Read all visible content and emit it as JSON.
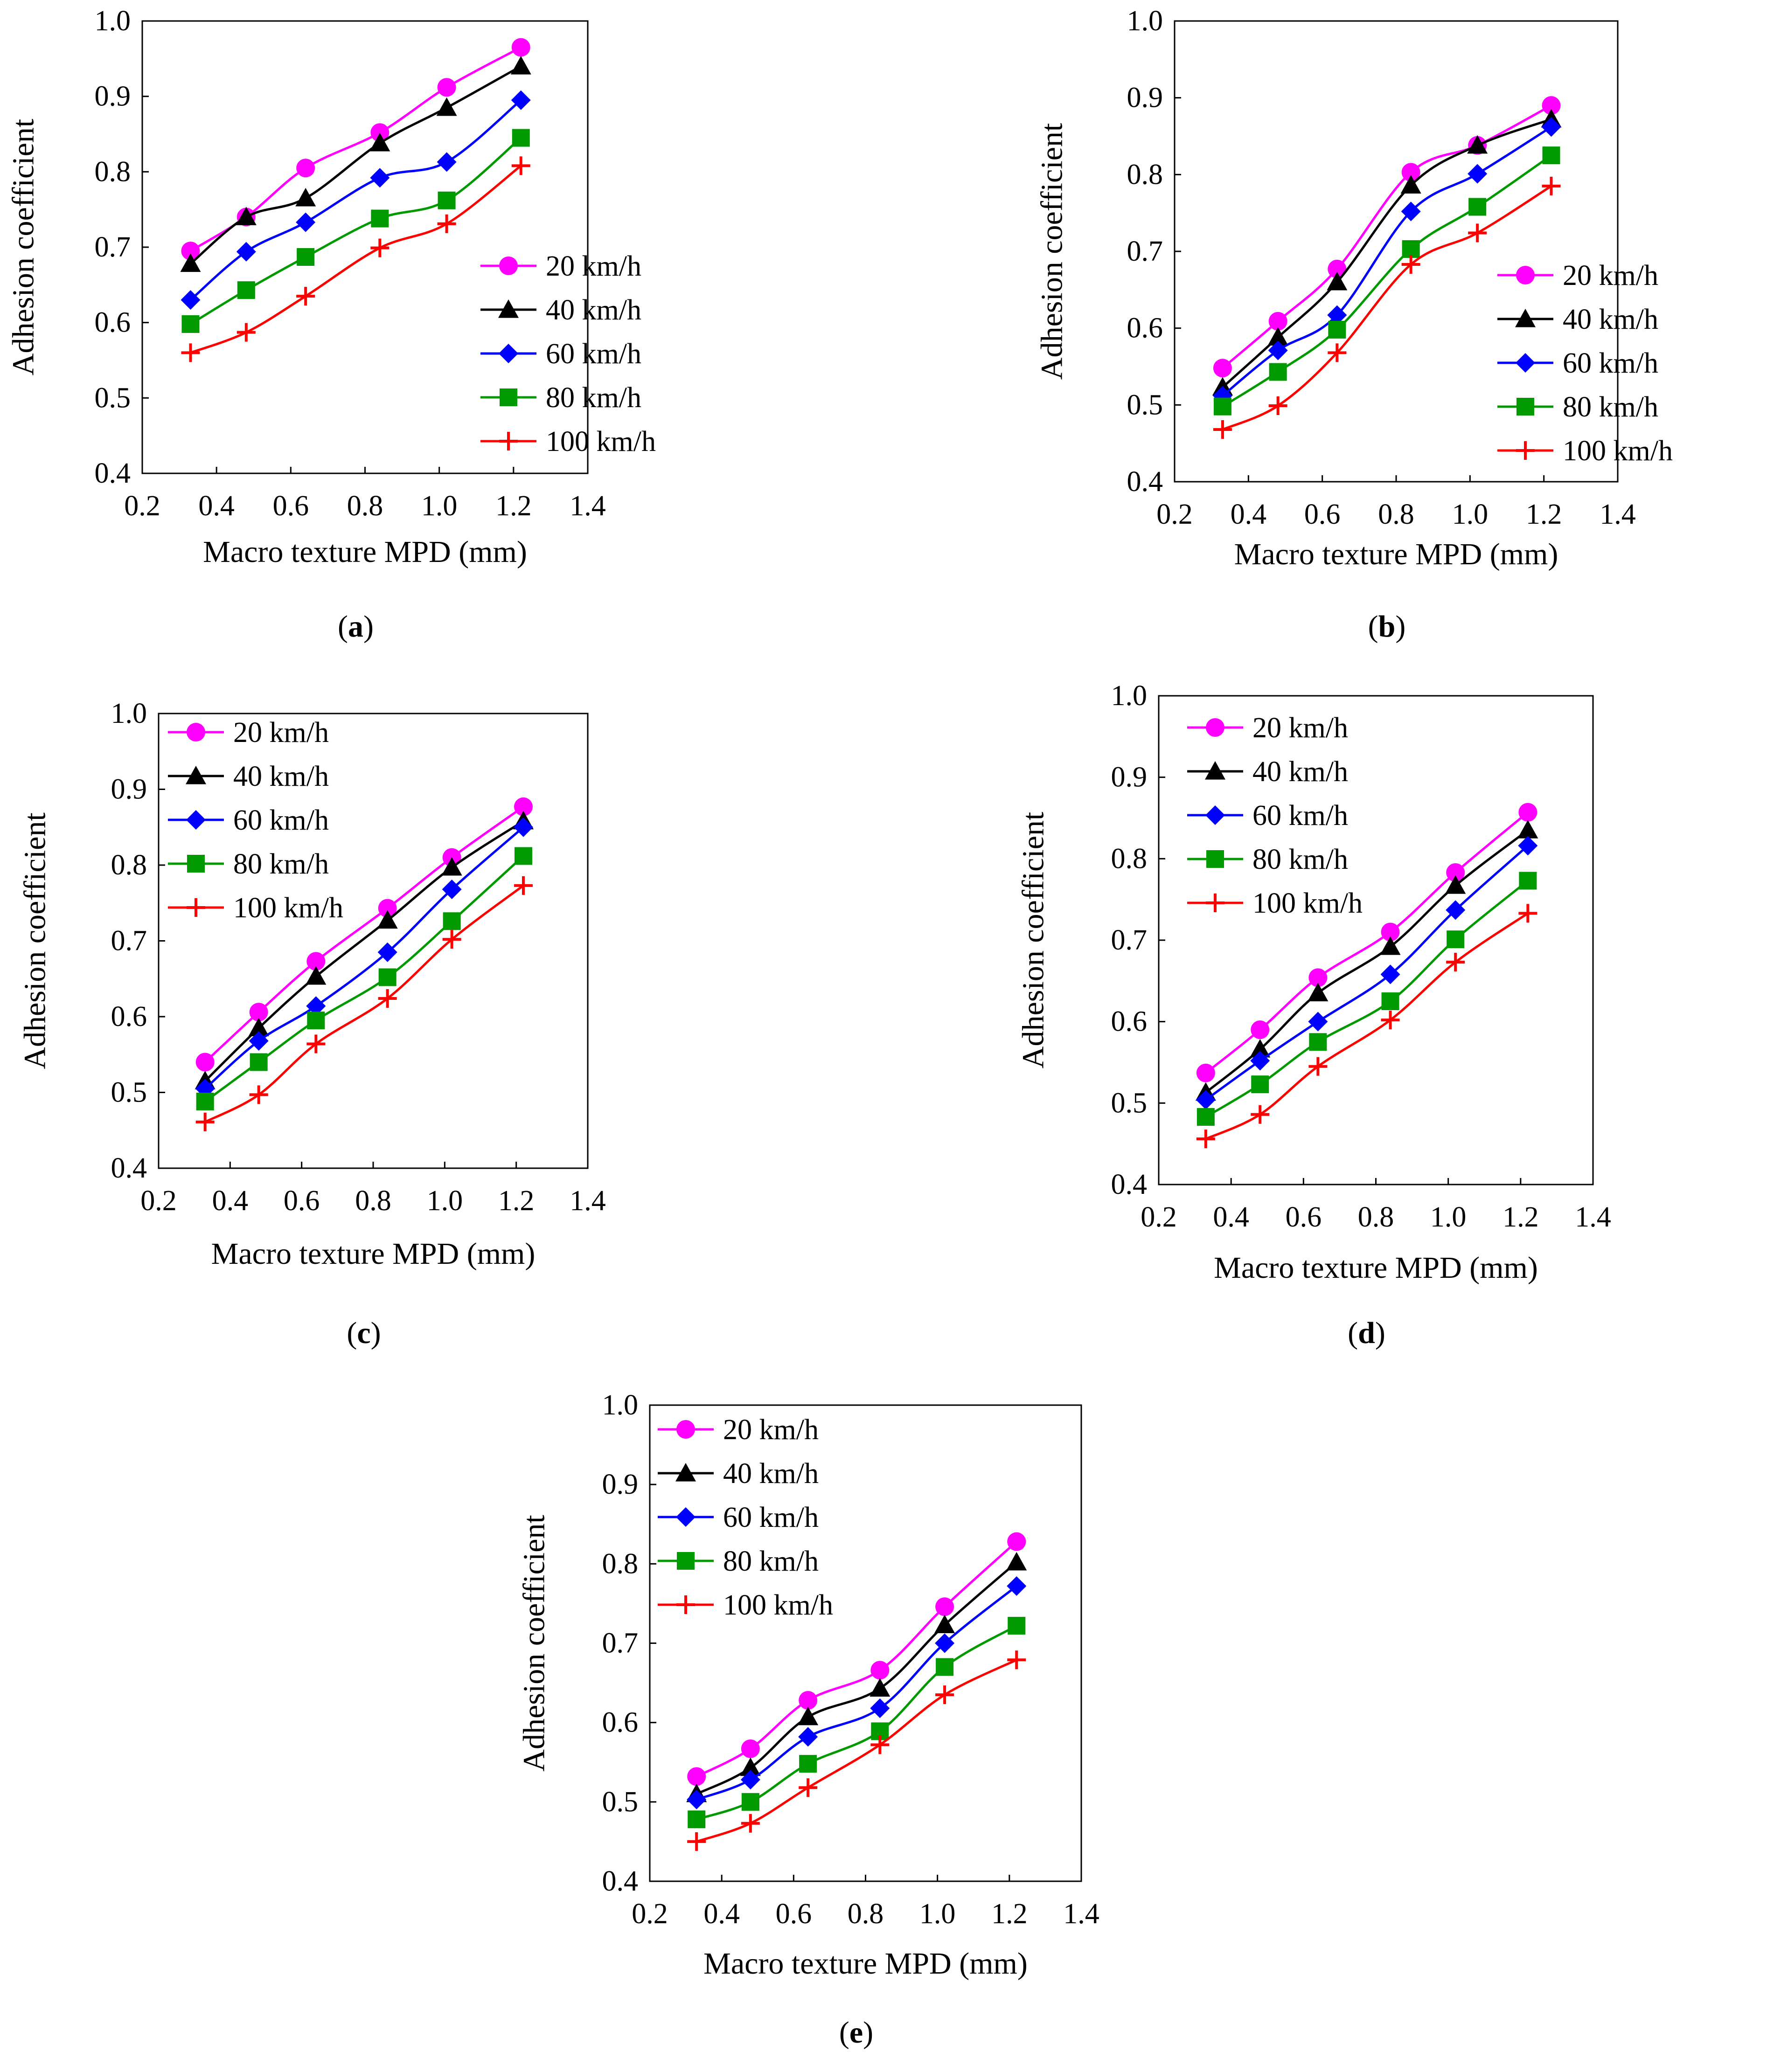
{
  "chart_data": [
    {
      "type": "line",
      "panel_label": "a",
      "xlabel": "Macro texture MPD (mm)",
      "ylabel": "Adhesion coefficient",
      "xlim": [
        0.2,
        1.4
      ],
      "ylim": [
        0.4,
        1.0
      ],
      "x_ticks": [
        "0.2",
        "0.4",
        "0.6",
        "0.8",
        "1.0",
        "1.2",
        "1.4"
      ],
      "y_ticks": [
        "0.4",
        "0.5",
        "0.6",
        "0.7",
        "0.8",
        "0.9",
        "1.0"
      ],
      "x": [
        0.33,
        0.48,
        0.64,
        0.84,
        1.02,
        1.22
      ],
      "legend_position": "bottom-right",
      "series": [
        {
          "name": "20 km/h",
          "values": [
            0.695,
            0.74,
            0.805,
            0.852,
            0.912,
            0.965
          ]
        },
        {
          "name": "40 km/h",
          "values": [
            0.678,
            0.74,
            0.765,
            0.838,
            0.885,
            0.94
          ]
        },
        {
          "name": "60 km/h",
          "values": [
            0.63,
            0.694,
            0.733,
            0.792,
            0.813,
            0.895
          ]
        },
        {
          "name": "80 km/h",
          "values": [
            0.598,
            0.643,
            0.687,
            0.738,
            0.762,
            0.845
          ]
        },
        {
          "name": "100 km/h",
          "values": [
            0.56,
            0.587,
            0.635,
            0.699,
            0.731,
            0.808
          ]
        }
      ]
    },
    {
      "type": "line",
      "panel_label": "b",
      "xlabel": "Macro texture MPD (mm)",
      "ylabel": "Adhesion coefficient",
      "xlim": [
        0.2,
        1.4
      ],
      "ylim": [
        0.4,
        1.0
      ],
      "x_ticks": [
        "0.2",
        "0.4",
        "0.6",
        "0.8",
        "1.0",
        "1.2",
        "1.4"
      ],
      "y_ticks": [
        "0.4",
        "0.5",
        "0.6",
        "0.7",
        "0.8",
        "0.9",
        "1.0"
      ],
      "x": [
        0.33,
        0.48,
        0.64,
        0.84,
        1.02,
        1.22
      ],
      "legend_position": "bottom-right",
      "series": [
        {
          "name": "20 km/h",
          "values": [
            0.548,
            0.609,
            0.677,
            0.803,
            0.838,
            0.89
          ]
        },
        {
          "name": "40 km/h",
          "values": [
            0.523,
            0.588,
            0.66,
            0.786,
            0.838,
            0.872
          ]
        },
        {
          "name": "60 km/h",
          "values": [
            0.512,
            0.571,
            0.617,
            0.752,
            0.801,
            0.862
          ]
        },
        {
          "name": "80 km/h",
          "values": [
            0.498,
            0.543,
            0.598,
            0.703,
            0.758,
            0.825
          ]
        },
        {
          "name": "100 km/h",
          "values": [
            0.468,
            0.499,
            0.568,
            0.683,
            0.724,
            0.785
          ]
        }
      ]
    },
    {
      "type": "line",
      "panel_label": "c",
      "xlabel": "Macro texture MPD (mm)",
      "ylabel": "Adhesion coefficient",
      "xlim": [
        0.2,
        1.4
      ],
      "ylim": [
        0.4,
        1.0
      ],
      "x_ticks": [
        "0.2",
        "0.4",
        "0.6",
        "0.8",
        "1.0",
        "1.2",
        "1.4"
      ],
      "y_ticks": [
        "0.4",
        "0.5",
        "0.6",
        "0.7",
        "0.8",
        "0.9",
        "1.0"
      ],
      "x": [
        0.33,
        0.48,
        0.64,
        0.84,
        1.02,
        1.22
      ],
      "legend_position": "top-left",
      "series": [
        {
          "name": "20 km/h",
          "values": [
            0.54,
            0.606,
            0.673,
            0.743,
            0.81,
            0.877
          ]
        },
        {
          "name": "40 km/h",
          "values": [
            0.515,
            0.585,
            0.653,
            0.727,
            0.797,
            0.858
          ]
        },
        {
          "name": "60 km/h",
          "values": [
            0.505,
            0.568,
            0.614,
            0.685,
            0.768,
            0.85
          ]
        },
        {
          "name": "80 km/h",
          "values": [
            0.488,
            0.54,
            0.595,
            0.652,
            0.726,
            0.812
          ]
        },
        {
          "name": "100 km/h",
          "values": [
            0.461,
            0.497,
            0.564,
            0.624,
            0.702,
            0.773
          ]
        }
      ]
    },
    {
      "type": "line",
      "panel_label": "d",
      "xlabel": "Macro texture MPD (mm)",
      "ylabel": "Adhesion coefficient",
      "xlim": [
        0.2,
        1.4
      ],
      "ylim": [
        0.4,
        1.0
      ],
      "x_ticks": [
        "0.2",
        "0.4",
        "0.6",
        "0.8",
        "1.0",
        "1.2",
        "1.4"
      ],
      "y_ticks": [
        "0.4",
        "0.5",
        "0.6",
        "0.7",
        "0.8",
        "0.9",
        "1.0"
      ],
      "x": [
        0.33,
        0.48,
        0.64,
        0.84,
        1.02,
        1.22
      ],
      "legend_position": "top-left",
      "series": [
        {
          "name": "20 km/h",
          "values": [
            0.537,
            0.59,
            0.654,
            0.71,
            0.783,
            0.857
          ]
        },
        {
          "name": "40 km/h",
          "values": [
            0.513,
            0.566,
            0.635,
            0.692,
            0.767,
            0.835
          ]
        },
        {
          "name": "60 km/h",
          "values": [
            0.504,
            0.552,
            0.6,
            0.658,
            0.737,
            0.816
          ]
        },
        {
          "name": "80 km/h",
          "values": [
            0.483,
            0.523,
            0.575,
            0.625,
            0.701,
            0.773
          ]
        },
        {
          "name": "100 km/h",
          "values": [
            0.456,
            0.486,
            0.545,
            0.602,
            0.673,
            0.733
          ]
        }
      ]
    },
    {
      "type": "line",
      "panel_label": "e",
      "xlabel": "Macro texture MPD (mm)",
      "ylabel": "Adhesion coefficient",
      "xlim": [
        0.2,
        1.4
      ],
      "ylim": [
        0.4,
        1.0
      ],
      "x_ticks": [
        "0.2",
        "0.4",
        "0.6",
        "0.8",
        "1.0",
        "1.2",
        "1.4"
      ],
      "y_ticks": [
        "0.4",
        "0.5",
        "0.6",
        "0.7",
        "0.8",
        "0.9",
        "1.0"
      ],
      "x": [
        0.33,
        0.48,
        0.64,
        0.84,
        1.02,
        1.22
      ],
      "legend_position": "top-left",
      "series": [
        {
          "name": "20 km/h",
          "values": [
            0.532,
            0.567,
            0.628,
            0.666,
            0.746,
            0.828
          ]
        },
        {
          "name": "40 km/h",
          "values": [
            0.51,
            0.543,
            0.607,
            0.643,
            0.723,
            0.802
          ]
        },
        {
          "name": "60 km/h",
          "values": [
            0.503,
            0.528,
            0.582,
            0.618,
            0.7,
            0.772
          ]
        },
        {
          "name": "80 km/h",
          "values": [
            0.478,
            0.5,
            0.548,
            0.589,
            0.67,
            0.722
          ]
        },
        {
          "name": "100 km/h",
          "values": [
            0.45,
            0.473,
            0.518,
            0.572,
            0.635,
            0.679
          ]
        }
      ]
    }
  ],
  "series_styles": [
    {
      "color": "#ff00ff",
      "marker": "circle"
    },
    {
      "color": "#000000",
      "marker": "triangle"
    },
    {
      "color": "#0000ff",
      "marker": "diamond"
    },
    {
      "color": "#009900",
      "marker": "square"
    },
    {
      "color": "#ff0000",
      "marker": "plus"
    }
  ]
}
